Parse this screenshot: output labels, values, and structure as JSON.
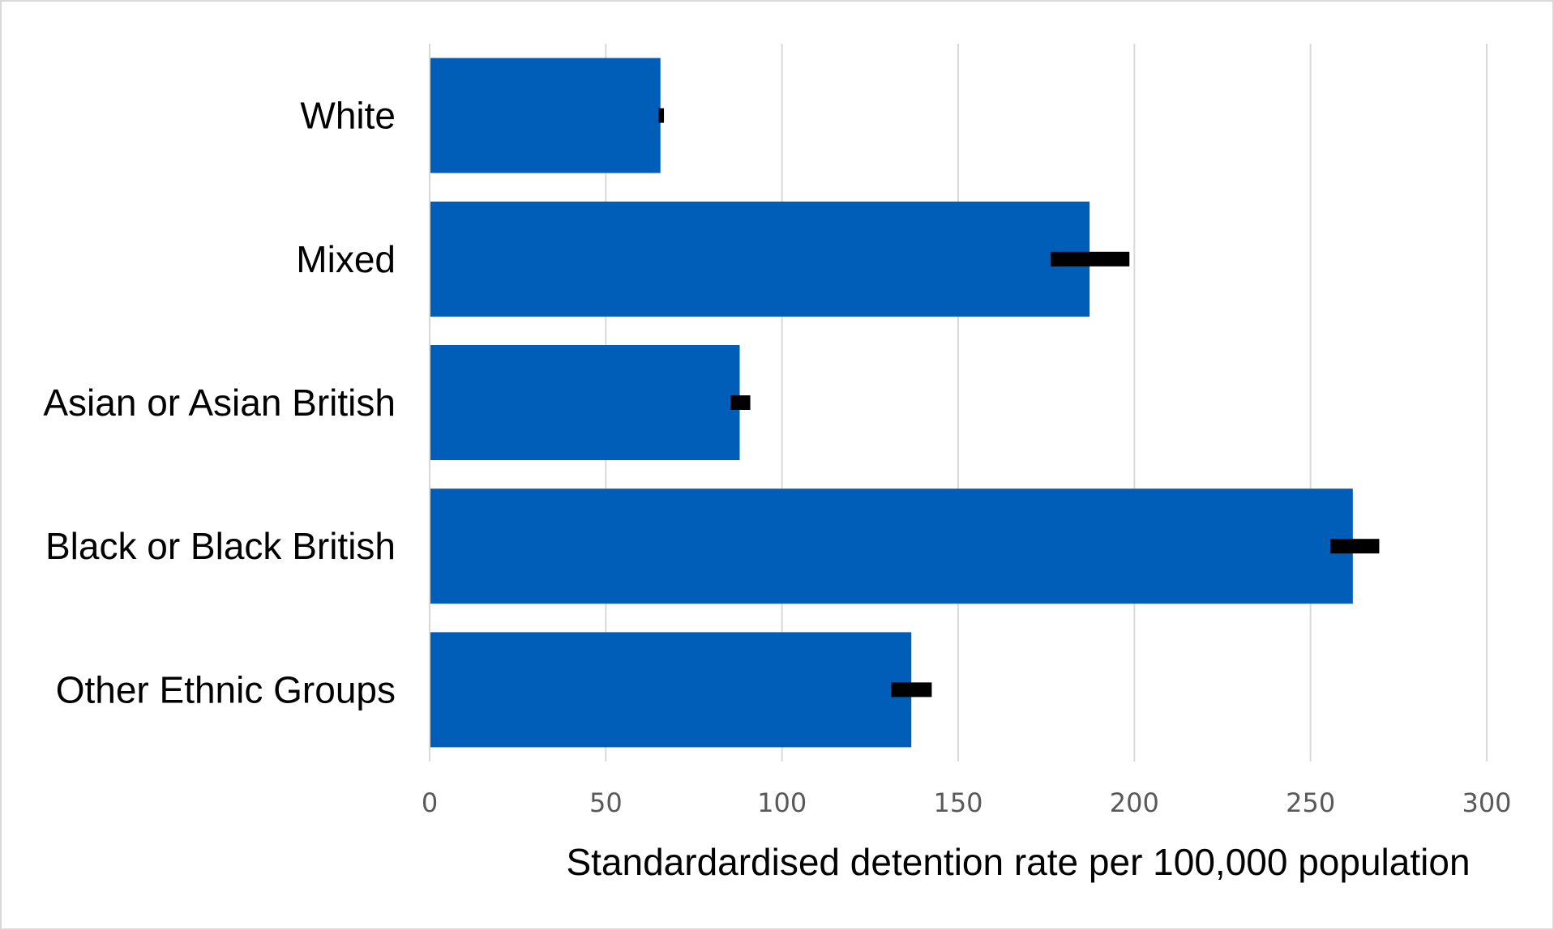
{
  "chart_data": {
    "type": "bar",
    "orientation": "horizontal",
    "categories": [
      "White",
      "Mixed",
      "Asian or Asian British",
      "Black or Black British",
      "Other Ethnic Groups"
    ],
    "values": [
      65.5,
      187.3,
      88.0,
      262.0,
      136.7
    ],
    "error_bars": [
      {
        "low": 65.0,
        "high": 66.5
      },
      {
        "low": 176.3,
        "high": 198.6
      },
      {
        "low": 85.4,
        "high": 91.0
      },
      {
        "low": 255.6,
        "high": 269.5
      },
      {
        "low": 131.0,
        "high": 142.5
      }
    ],
    "xlabel": "Standardardised detention rate per 100,000 population",
    "ylabel": "",
    "xlim": [
      0,
      300
    ],
    "xticks": [
      0,
      50,
      100,
      150,
      200,
      250,
      300
    ],
    "xtick_labels": [
      "0",
      "50",
      "100",
      "150",
      "200",
      "250",
      "300"
    ],
    "grid": "vertical",
    "legend": "none",
    "colors": {
      "bar": "#005EB8",
      "error_bar": "#000000",
      "grid": "#d9d9d9",
      "frame": "#d9d9d9"
    }
  }
}
